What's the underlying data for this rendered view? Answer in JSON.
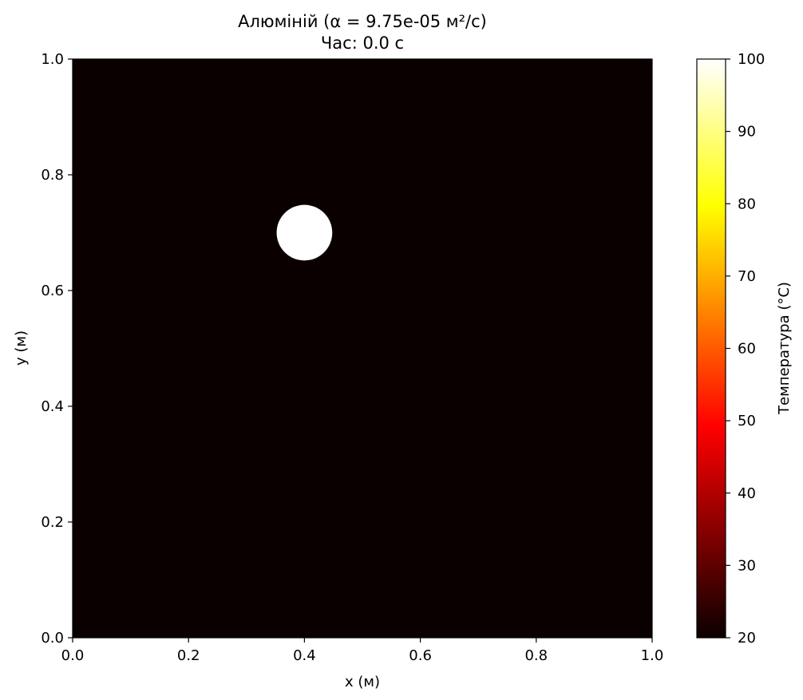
{
  "chart_data": {
    "type": "heatmap",
    "title": "Алюміній (α = 9.75e-05 м²/с)",
    "subtitle": "Час: 0.0 с",
    "xlabel": "x (м)",
    "ylabel": "y (м)",
    "xlim": [
      0.0,
      1.0
    ],
    "ylim": [
      0.0,
      1.0
    ],
    "xticks": [
      "0.0",
      "0.2",
      "0.4",
      "0.6",
      "0.8",
      "1.0"
    ],
    "yticks": [
      "0.0",
      "0.2",
      "0.4",
      "0.6",
      "0.8",
      "1.0"
    ],
    "grid": false,
    "colormap": "hot",
    "field": {
      "background_value": 20,
      "hot_spot": {
        "center_x": 0.4,
        "center_y": 0.7,
        "radius": 0.048,
        "value": 100
      }
    },
    "colorbar": {
      "label": "Температура (°C)",
      "range": [
        20,
        100
      ],
      "ticks": [
        "20",
        "30",
        "40",
        "50",
        "60",
        "70",
        "80",
        "90",
        "100"
      ],
      "position": "right"
    },
    "colors": {
      "background_cold": "#0b0000",
      "hot": "#ffffff",
      "axis": "#000000"
    }
  }
}
